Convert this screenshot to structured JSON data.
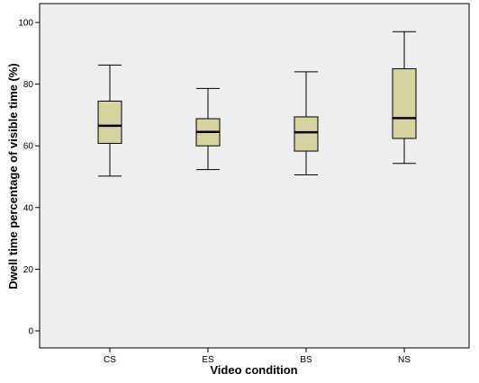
{
  "chart_data": {
    "type": "boxplot",
    "title": "",
    "xlabel": "Video condition",
    "ylabel": "Dwell time percentage of visible time (%)",
    "ylim": [
      -3,
      105
    ],
    "yticks": [
      0,
      20,
      40,
      60,
      80,
      100
    ],
    "grid": false,
    "categories": [
      "CS",
      "ES",
      "BS",
      "NS"
    ],
    "boxes": [
      {
        "category": "CS",
        "min": 50.2,
        "q1": 60.8,
        "median": 66.5,
        "q3": 74.5,
        "max": 86.2
      },
      {
        "category": "ES",
        "min": 52.3,
        "q1": 60.0,
        "median": 64.5,
        "q3": 68.8,
        "max": 78.6
      },
      {
        "category": "BS",
        "min": 50.6,
        "q1": 58.3,
        "median": 64.4,
        "q3": 69.4,
        "max": 84.0
      },
      {
        "category": "NS",
        "min": 54.3,
        "q1": 62.4,
        "median": 69.0,
        "q3": 85.0,
        "max": 97.0
      }
    ]
  },
  "colors": {
    "plot_background": "#efeeee",
    "box_fill": "#d6d3a0",
    "stroke": "#000000"
  }
}
